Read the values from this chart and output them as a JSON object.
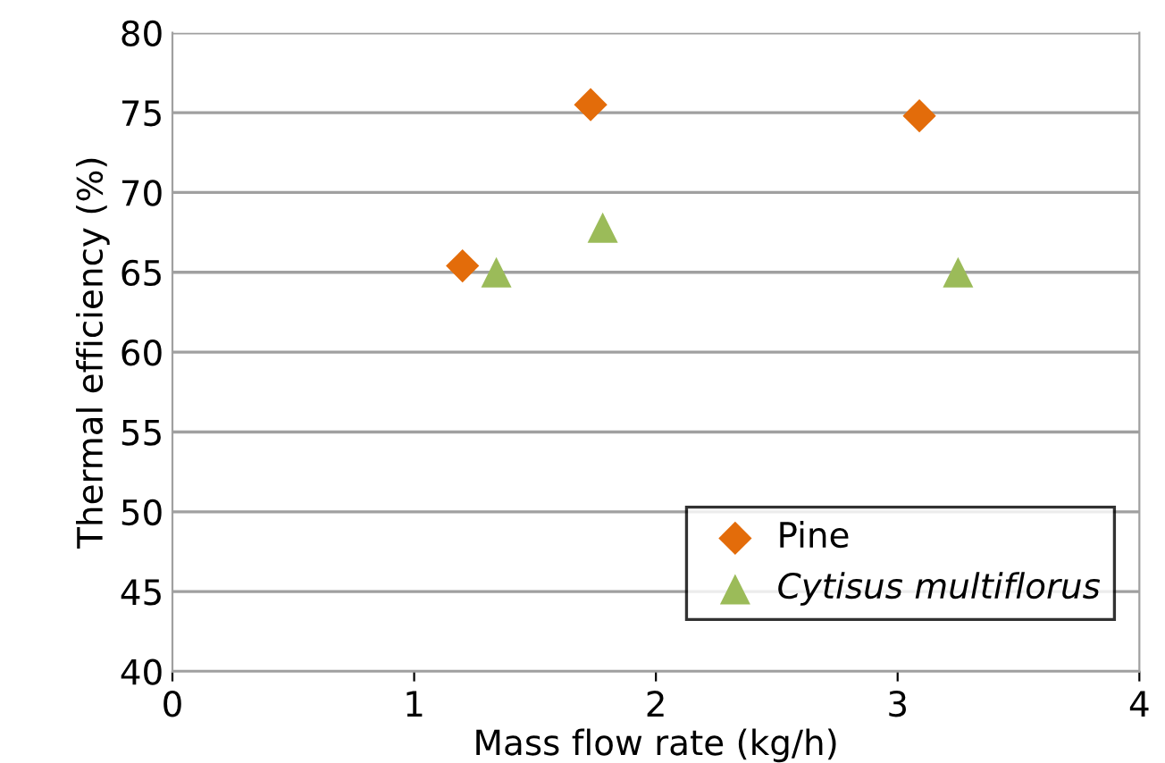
{
  "chart_data": {
    "type": "scatter",
    "xlabel": "Mass flow rate (kg/h)",
    "ylabel": "Thermal efficiency (%)",
    "xlim": [
      0,
      4
    ],
    "xticks": [
      0,
      1,
      2,
      3,
      4
    ],
    "ylim": [
      40,
      80
    ],
    "yticks": [
      40,
      45,
      50,
      55,
      60,
      65,
      70,
      75,
      80
    ],
    "grid": "y",
    "legend": "bottom right",
    "series": [
      {
        "name": "Pine",
        "color": "#e36c0a",
        "marker": "diamond",
        "x": [
          1.2,
          1.73,
          3.09
        ],
        "values": [
          65.4,
          75.5,
          74.8
        ]
      },
      {
        "name": "Cytisus multiflorus",
        "color": "#9bbb59",
        "marker": "triangle",
        "x": [
          1.34,
          1.78,
          3.25
        ],
        "values": [
          65.0,
          67.8,
          65.0
        ]
      }
    ]
  }
}
